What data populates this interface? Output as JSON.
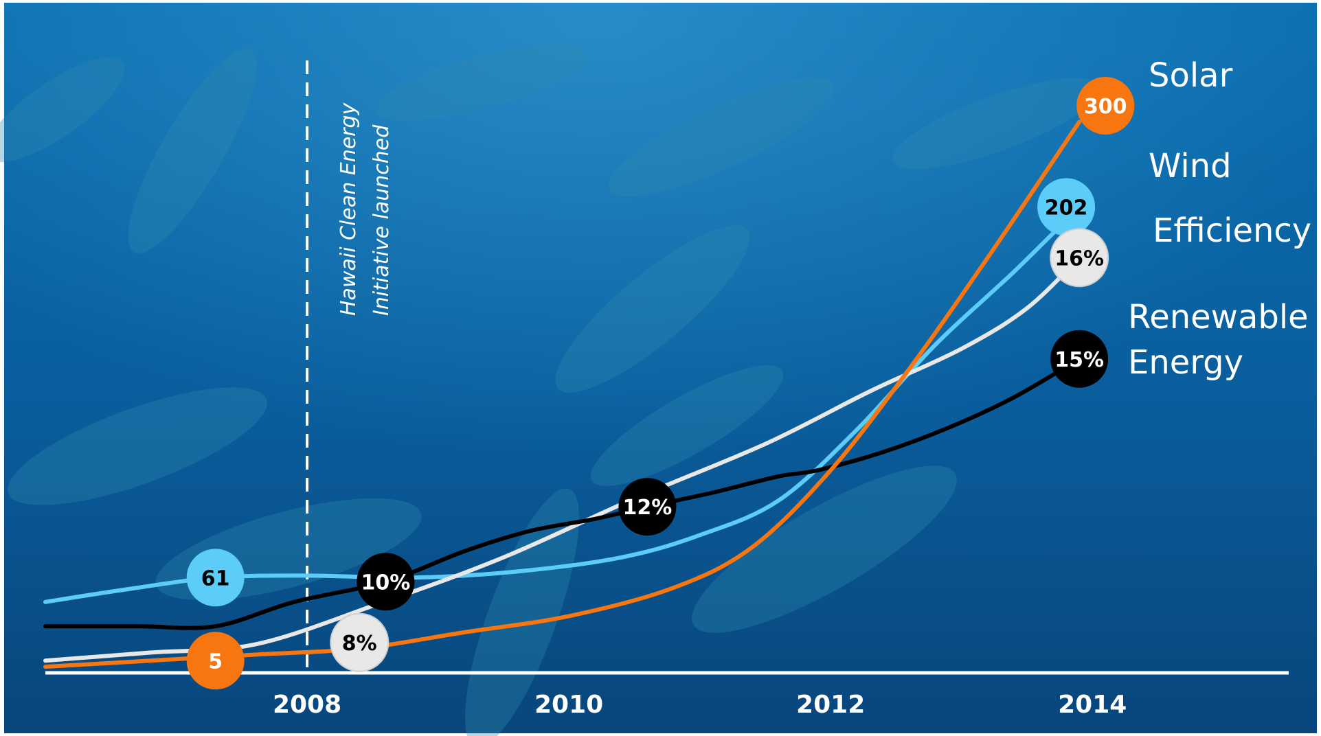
{
  "chart_data": {
    "type": "line",
    "x_ticks": [
      "2008",
      "2010",
      "2012",
      "2014"
    ],
    "annotation": {
      "x": 2008,
      "lines": [
        "Hawaii Clean Energy",
        "Initiative launched"
      ]
    },
    "series": [
      {
        "name": "Solar",
        "color": "#f7760f",
        "label_color": "#ffffff",
        "points": [
          [
            2006.0,
            0.03
          ],
          [
            2006.8,
            0.06
          ],
          [
            2007.6,
            0.09
          ],
          [
            2008.4,
            0.12
          ],
          [
            2009.2,
            0.2
          ],
          [
            2010.0,
            0.28
          ],
          [
            2010.8,
            0.42
          ],
          [
            2011.4,
            0.62
          ],
          [
            2012.0,
            1.0
          ],
          [
            2012.6,
            1.5
          ],
          [
            2013.2,
            2.05
          ],
          [
            2013.9,
            2.72
          ]
        ],
        "bubbles": [
          {
            "x": 2007.3,
            "y": 0.06,
            "text": "5"
          },
          {
            "x": 2014.1,
            "y": 2.8,
            "text": "300"
          }
        ]
      },
      {
        "name": "Wind",
        "color": "#5ccdf8",
        "label_color": "#000000",
        "points": [
          [
            2006.0,
            0.35
          ],
          [
            2006.6,
            0.41
          ],
          [
            2007.3,
            0.47
          ],
          [
            2008.0,
            0.48
          ],
          [
            2008.8,
            0.47
          ],
          [
            2009.6,
            0.5
          ],
          [
            2010.4,
            0.57
          ],
          [
            2011.0,
            0.68
          ],
          [
            2011.6,
            0.85
          ],
          [
            2012.2,
            1.2
          ],
          [
            2012.8,
            1.62
          ],
          [
            2013.4,
            1.98
          ],
          [
            2013.9,
            2.3
          ]
        ],
        "bubbles": [
          {
            "x": 2007.3,
            "y": 0.47,
            "text": "61"
          },
          {
            "x": 2013.8,
            "y": 2.3,
            "text": "202"
          }
        ]
      },
      {
        "name": "Efficiency",
        "color": "#e8e8e8",
        "label_color": "#000000",
        "points": [
          [
            2006.0,
            0.06
          ],
          [
            2006.8,
            0.1
          ],
          [
            2007.6,
            0.14
          ],
          [
            2008.5,
            0.33
          ],
          [
            2009.5,
            0.57
          ],
          [
            2010.5,
            0.86
          ],
          [
            2011.5,
            1.13
          ],
          [
            2012.3,
            1.39
          ],
          [
            2013.0,
            1.6
          ],
          [
            2013.5,
            1.8
          ],
          [
            2013.9,
            2.05
          ]
        ],
        "bubbles": [
          {
            "x": 2008.4,
            "y": 0.15,
            "text": "8%"
          },
          {
            "x": 2013.9,
            "y": 2.05,
            "text": "16%"
          }
        ]
      },
      {
        "name": "Renewable Energy",
        "color": "#000000",
        "label_color": "#ffffff",
        "points": [
          [
            2006.0,
            0.23
          ],
          [
            2006.7,
            0.23
          ],
          [
            2007.3,
            0.23
          ],
          [
            2007.9,
            0.35
          ],
          [
            2008.6,
            0.45
          ],
          [
            2009.2,
            0.6
          ],
          [
            2009.7,
            0.7
          ],
          [
            2010.2,
            0.76
          ],
          [
            2010.6,
            0.82
          ],
          [
            2011.1,
            0.89
          ],
          [
            2011.6,
            0.97
          ],
          [
            2011.9,
            1.0
          ],
          [
            2012.4,
            1.09
          ],
          [
            2012.9,
            1.21
          ],
          [
            2013.4,
            1.36
          ],
          [
            2013.9,
            1.55
          ]
        ],
        "bubbles": [
          {
            "x": 2008.6,
            "y": 0.45,
            "text": "10%"
          },
          {
            "x": 2010.6,
            "y": 0.82,
            "text": "12%"
          },
          {
            "x": 2013.9,
            "y": 1.55,
            "text": "15%"
          }
        ]
      }
    ],
    "legend_labels": [
      {
        "series": "Solar",
        "lines": [
          "Solar"
        ]
      },
      {
        "series": "Wind",
        "lines": [
          "Wind"
        ]
      },
      {
        "series": "Efficiency",
        "lines": [
          "Efficiency"
        ]
      },
      {
        "series": "Renewable Energy",
        "lines": [
          "Renewable",
          "Energy"
        ]
      }
    ],
    "background": "underwater photo with dolphins",
    "axis_color": "#ffffff",
    "grid": false,
    "xlim": [
      2006.0,
      2015.5
    ],
    "ylim": [
      0,
      3.0
    ]
  }
}
